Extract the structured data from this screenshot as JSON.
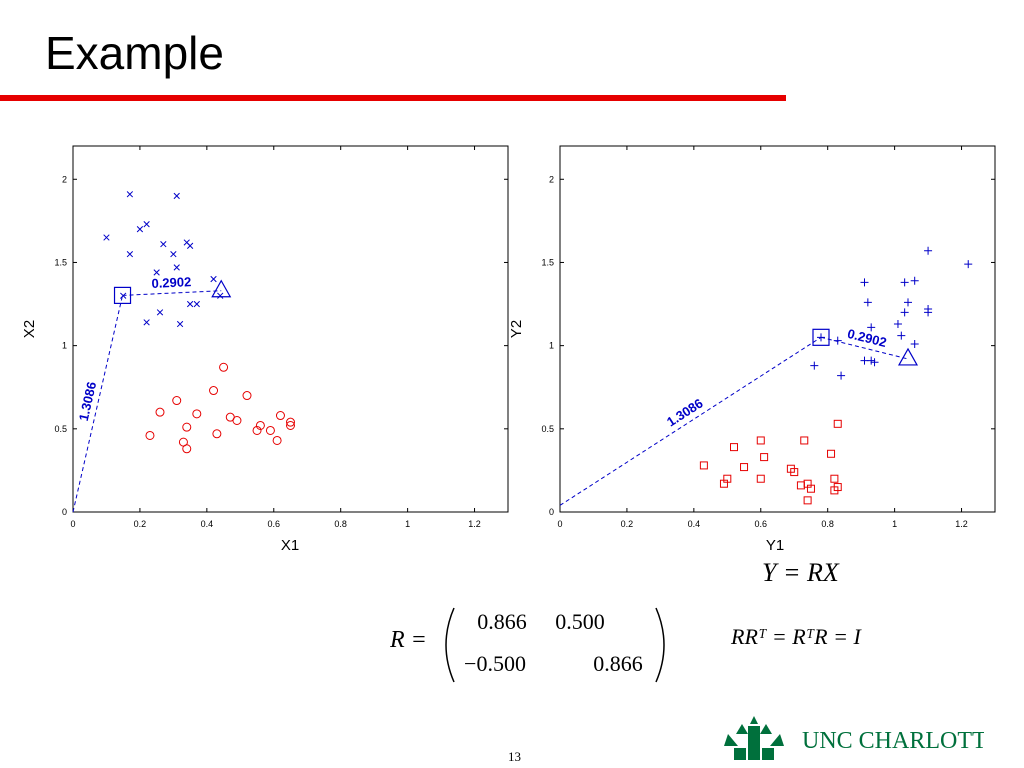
{
  "slide": {
    "title": "Example",
    "page_number": "13",
    "equation_y": "Y = RX",
    "equation_r_lhs": "R =",
    "matrix_r": [
      [
        "0.866",
        "0.500"
      ],
      [
        "−0.500",
        "0.866"
      ]
    ],
    "identity_equation": "RRᵀ = RᵀR = I",
    "logo_text": "UNC CHARLOTTE"
  },
  "colors": {
    "accent_red": "#e60000",
    "series_blue": "#0000c8",
    "series_red": "#e60000"
  },
  "chart_data": [
    {
      "type": "scatter",
      "title": "",
      "xlabel": "X1",
      "ylabel": "X2",
      "xlim": [
        0,
        1.3
      ],
      "ylim": [
        0,
        2.2
      ],
      "xticks": [
        "0",
        "0.2",
        "0.4",
        "0.6",
        "0.8",
        "1",
        "1.2"
      ],
      "yticks": [
        "0",
        "0.5",
        "1",
        "1.5",
        "2"
      ],
      "series": [
        {
          "marker": "x",
          "color": "#0000c8",
          "points": [
            [
              0.17,
              1.91
            ],
            [
              0.31,
              1.9
            ],
            [
              0.1,
              1.65
            ],
            [
              0.22,
              1.73
            ],
            [
              0.2,
              1.7
            ],
            [
              0.17,
              1.55
            ],
            [
              0.27,
              1.61
            ],
            [
              0.3,
              1.55
            ],
            [
              0.34,
              1.62
            ],
            [
              0.35,
              1.6
            ],
            [
              0.25,
              1.44
            ],
            [
              0.31,
              1.47
            ],
            [
              0.42,
              1.4
            ],
            [
              0.35,
              1.25
            ],
            [
              0.37,
              1.25
            ],
            [
              0.44,
              1.3
            ],
            [
              0.15,
              1.3
            ],
            [
              0.22,
              1.14
            ],
            [
              0.26,
              1.2
            ],
            [
              0.32,
              1.13
            ]
          ]
        },
        {
          "marker": "o",
          "color": "#e60000",
          "points": [
            [
              0.45,
              0.87
            ],
            [
              0.42,
              0.73
            ],
            [
              0.31,
              0.67
            ],
            [
              0.52,
              0.7
            ],
            [
              0.26,
              0.6
            ],
            [
              0.37,
              0.59
            ],
            [
              0.47,
              0.57
            ],
            [
              0.49,
              0.55
            ],
            [
              0.62,
              0.58
            ],
            [
              0.65,
              0.54
            ],
            [
              0.65,
              0.52
            ],
            [
              0.56,
              0.52
            ],
            [
              0.55,
              0.49
            ],
            [
              0.59,
              0.49
            ],
            [
              0.34,
              0.51
            ],
            [
              0.23,
              0.46
            ],
            [
              0.43,
              0.47
            ],
            [
              0.61,
              0.43
            ],
            [
              0.33,
              0.42
            ],
            [
              0.34,
              0.38
            ]
          ]
        }
      ],
      "annotations": [
        {
          "type": "square",
          "x": 0.148,
          "y": 1.302
        },
        {
          "type": "triangle",
          "x": 0.443,
          "y": 1.33
        },
        {
          "type": "dashed-line",
          "from": [
            0,
            0
          ],
          "to": [
            0.148,
            1.302
          ],
          "label": "1.3086"
        },
        {
          "type": "dashed-line",
          "from": [
            0.148,
            1.302
          ],
          "to": [
            0.443,
            1.33
          ],
          "label": "0.2902"
        }
      ]
    },
    {
      "type": "scatter",
      "title": "",
      "xlabel": "Y1",
      "ylabel": "Y2",
      "xlim": [
        0,
        1.3
      ],
      "ylim": [
        0,
        2.2
      ],
      "xticks": [
        "0",
        "0.2",
        "0.4",
        "0.6",
        "0.8",
        "1",
        "1.2"
      ],
      "yticks": [
        "0",
        "0.5",
        "1",
        "1.5",
        "2"
      ],
      "series": [
        {
          "marker": "+",
          "color": "#0000c8",
          "points": [
            [
              1.1,
              1.57
            ],
            [
              1.22,
              1.49
            ],
            [
              0.91,
              1.38
            ],
            [
              1.03,
              1.38
            ],
            [
              1.06,
              1.39
            ],
            [
              0.92,
              1.26
            ],
            [
              1.04,
              1.26
            ],
            [
              1.03,
              1.2
            ],
            [
              1.1,
              1.22
            ],
            [
              1.1,
              1.2
            ],
            [
              0.93,
              1.11
            ],
            [
              1.01,
              1.13
            ],
            [
              0.83,
              1.03
            ],
            [
              1.02,
              1.06
            ],
            [
              1.06,
              1.01
            ],
            [
              0.93,
              0.91
            ],
            [
              0.94,
              0.9
            ],
            [
              0.91,
              0.91
            ],
            [
              0.76,
              0.88
            ],
            [
              0.84,
              0.82
            ],
            [
              0.78,
              1.05
            ]
          ]
        },
        {
          "marker": "square",
          "color": "#e60000",
          "points": [
            [
              0.6,
              0.43
            ],
            [
              0.73,
              0.43
            ],
            [
              0.83,
              0.53
            ],
            [
              0.52,
              0.39
            ],
            [
              0.61,
              0.33
            ],
            [
              0.81,
              0.35
            ],
            [
              0.43,
              0.28
            ],
            [
              0.55,
              0.27
            ],
            [
              0.69,
              0.26
            ],
            [
              0.7,
              0.24
            ],
            [
              0.5,
              0.2
            ],
            [
              0.6,
              0.2
            ],
            [
              0.82,
              0.2
            ],
            [
              0.49,
              0.17
            ],
            [
              0.72,
              0.16
            ],
            [
              0.74,
              0.17
            ],
            [
              0.75,
              0.14
            ],
            [
              0.82,
              0.13
            ],
            [
              0.83,
              0.15
            ],
            [
              0.74,
              0.07
            ]
          ]
        }
      ],
      "annotations": [
        {
          "type": "square",
          "x": 0.78,
          "y": 1.05
        },
        {
          "type": "triangle",
          "x": 1.04,
          "y": 0.92
        },
        {
          "type": "dashed-line",
          "from": [
            0,
            0.04
          ],
          "to": [
            0.78,
            1.05
          ],
          "label": "1.3086"
        },
        {
          "type": "dashed-line",
          "from": [
            0.78,
            1.05
          ],
          "to": [
            1.04,
            0.92
          ],
          "label": "0.2902"
        }
      ]
    }
  ]
}
